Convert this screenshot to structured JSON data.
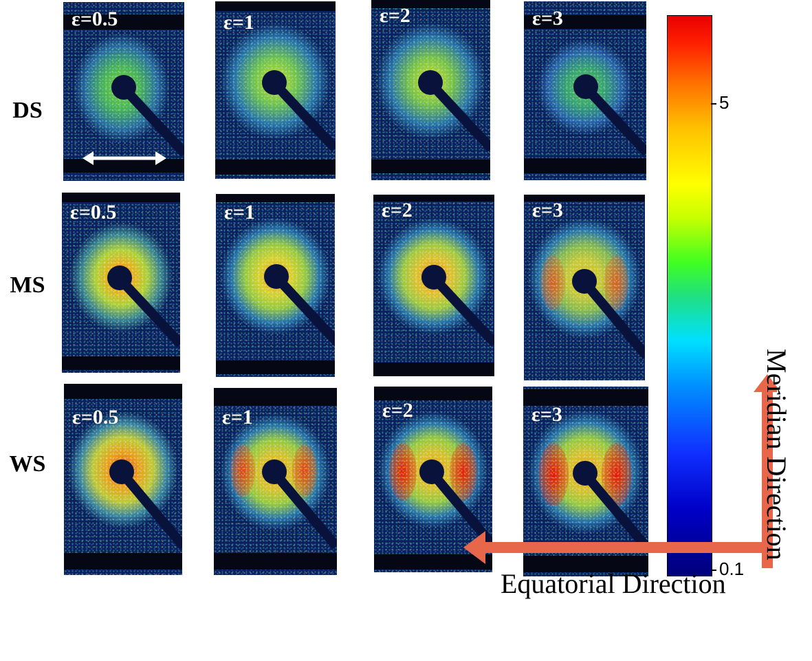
{
  "rows": [
    {
      "label": "DS",
      "eps": [
        "ε=0.5",
        "ε=1",
        "ε=2",
        "ε=3"
      ]
    },
    {
      "label": "MS",
      "eps": [
        "ε=0.5",
        "ε=1",
        "ε=2",
        "ε=3"
      ]
    },
    {
      "label": "WS",
      "eps": [
        "ε=0.5",
        "ε=1",
        "ε=2",
        "ε=3"
      ]
    }
  ],
  "colorbar": {
    "max_label": "5",
    "min_label": "0.1",
    "colors": [
      "#00007a",
      "#1030ff",
      "#00e0ff",
      "#40ff20",
      "#ffff00",
      "#ff7000",
      "#e80000"
    ]
  },
  "directions": {
    "meridian": "Meridian Direction",
    "equatorial": "Equatorial Direction",
    "arrow_color": "#e8664a"
  }
}
